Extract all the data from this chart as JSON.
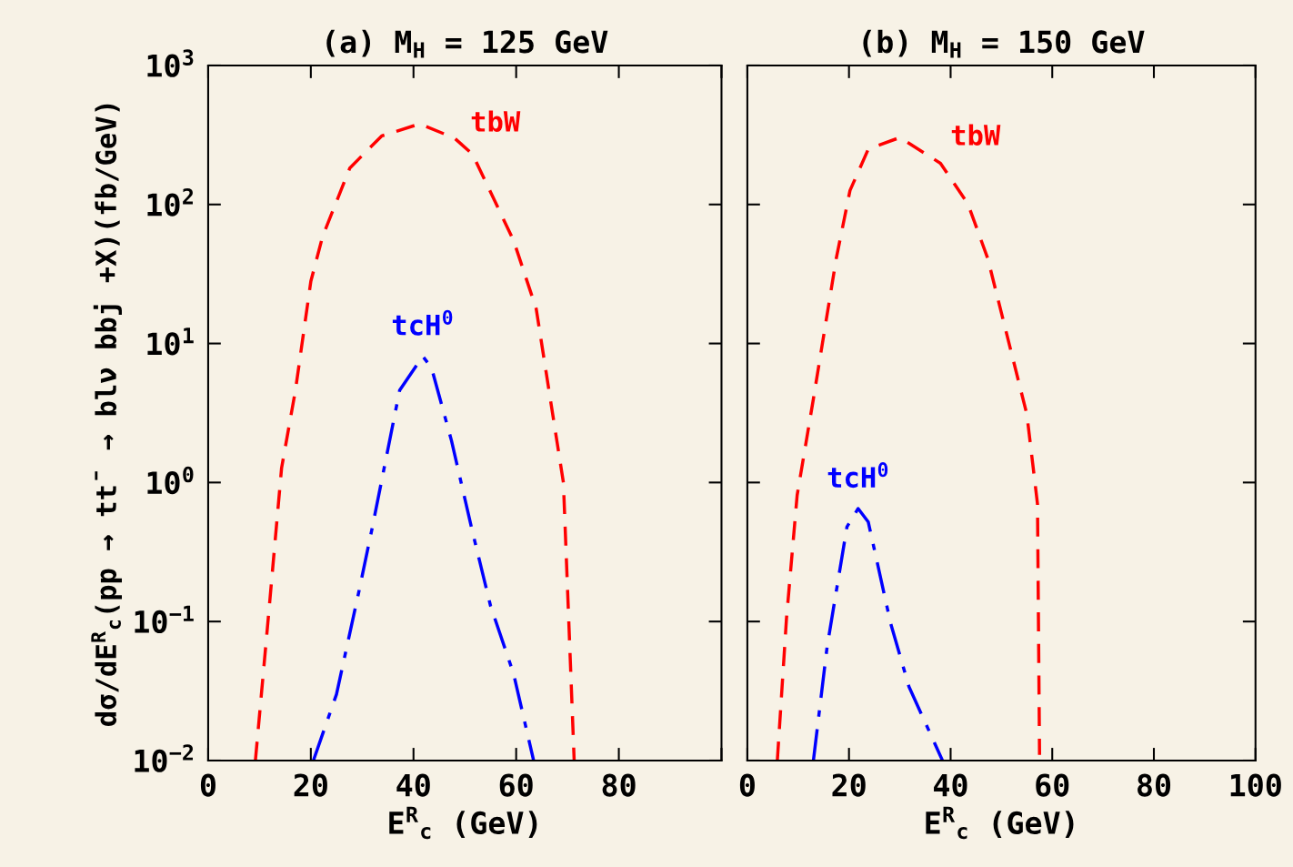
{
  "chart_data": [
    {
      "type": "line",
      "title": "(a) M$_{H}$ = 125 GeV",
      "xlabel": "E$^{R}$$_{c}$ (GeV)",
      "ylabel": "dσ/dE$^{R}$$_{c}$(pp → tt̄ → blν bbj +X)(fb/GeV)",
      "log": "y",
      "xlim": [
        0,
        100
      ],
      "xticks": [
        0,
        20,
        40,
        60,
        80,
        {
          "value": 100,
          "label": null
        }
      ],
      "ylim": [
        0.01,
        1000
      ],
      "yticks": [
        {
          "value": 0.01,
          "label": "10$^{−2}$"
        },
        {
          "value": 0.1,
          "label": "10$^{−1}$"
        },
        {
          "value": 1,
          "label": "10$^{0}$"
        },
        {
          "value": 10,
          "label": "10$^{1}$"
        },
        {
          "value": 100,
          "label": "10$^{2}$"
        },
        {
          "value": 1000,
          "label": "10$^{3}$"
        }
      ],
      "grid": false,
      "legend": false,
      "series": [
        {
          "name": "tbW",
          "color": "#ff0000",
          "line_style": "dashed",
          "x": [
            9.2,
            11.7,
            14.3,
            17.0,
            20.0,
            22.3,
            27.6,
            33.8,
            41.2,
            48.0,
            51.5,
            59.5,
            63.9,
            69.2,
            70.1,
            71.3
          ],
          "values": [
            0.01,
            0.105,
            1.27,
            4.6,
            28,
            59,
            183,
            311,
            380,
            300,
            230,
            55,
            17.8,
            1.0,
            0.14,
            0.01
          ]
        },
        {
          "name": "tcH$^{0}$",
          "color": "#0000ff",
          "line_style": "dashdot",
          "x": [
            20.5,
            25.0,
            29.4,
            32.0,
            37.3,
            41.8,
            43.5,
            47.4,
            51.5,
            55.0,
            59.5,
            63.4
          ],
          "values": [
            0.01,
            0.03,
            0.167,
            0.48,
            4.6,
            8.1,
            6.7,
            2.0,
            0.44,
            0.13,
            0.042,
            0.01
          ]
        }
      ]
    },
    {
      "type": "line",
      "title": "(b) M$_{H}$ = 150 GeV",
      "xlabel": "E$^{R}$$_{c}$ (GeV)",
      "log": "y",
      "xlim": [
        0,
        100
      ],
      "xticks": [
        0,
        20,
        40,
        60,
        80,
        100
      ],
      "ylim": [
        0.01,
        1000
      ],
      "yticks": [
        0.01,
        0.1,
        1,
        10,
        100,
        1000
      ],
      "tick_labels": "x",
      "grid": false,
      "legend": false,
      "series": [
        {
          "name": "tbW",
          "color": "#ff0000",
          "line_style": "dashed",
          "x": [
            5.9,
            7.7,
            9.8,
            13.0,
            17.5,
            20.2,
            23.8,
            30.0,
            38.0,
            43.4,
            47.3,
            55.0,
            57.1,
            57.5
          ],
          "values": [
            0.01,
            0.105,
            0.81,
            4,
            41,
            126,
            250,
            303,
            198,
            101,
            41,
            3.1,
            0.7,
            0.011
          ]
        },
        {
          "name": "tcH$^{0}$",
          "color": "#0000ff",
          "line_style": "dashdot",
          "x": [
            13.0,
            15.7,
            19.6,
            21.8,
            23.8,
            28.2,
            31.8,
            38.4
          ],
          "values": [
            0.01,
            0.066,
            0.48,
            0.65,
            0.52,
            0.097,
            0.034,
            0.01
          ]
        }
      ]
    }
  ]
}
